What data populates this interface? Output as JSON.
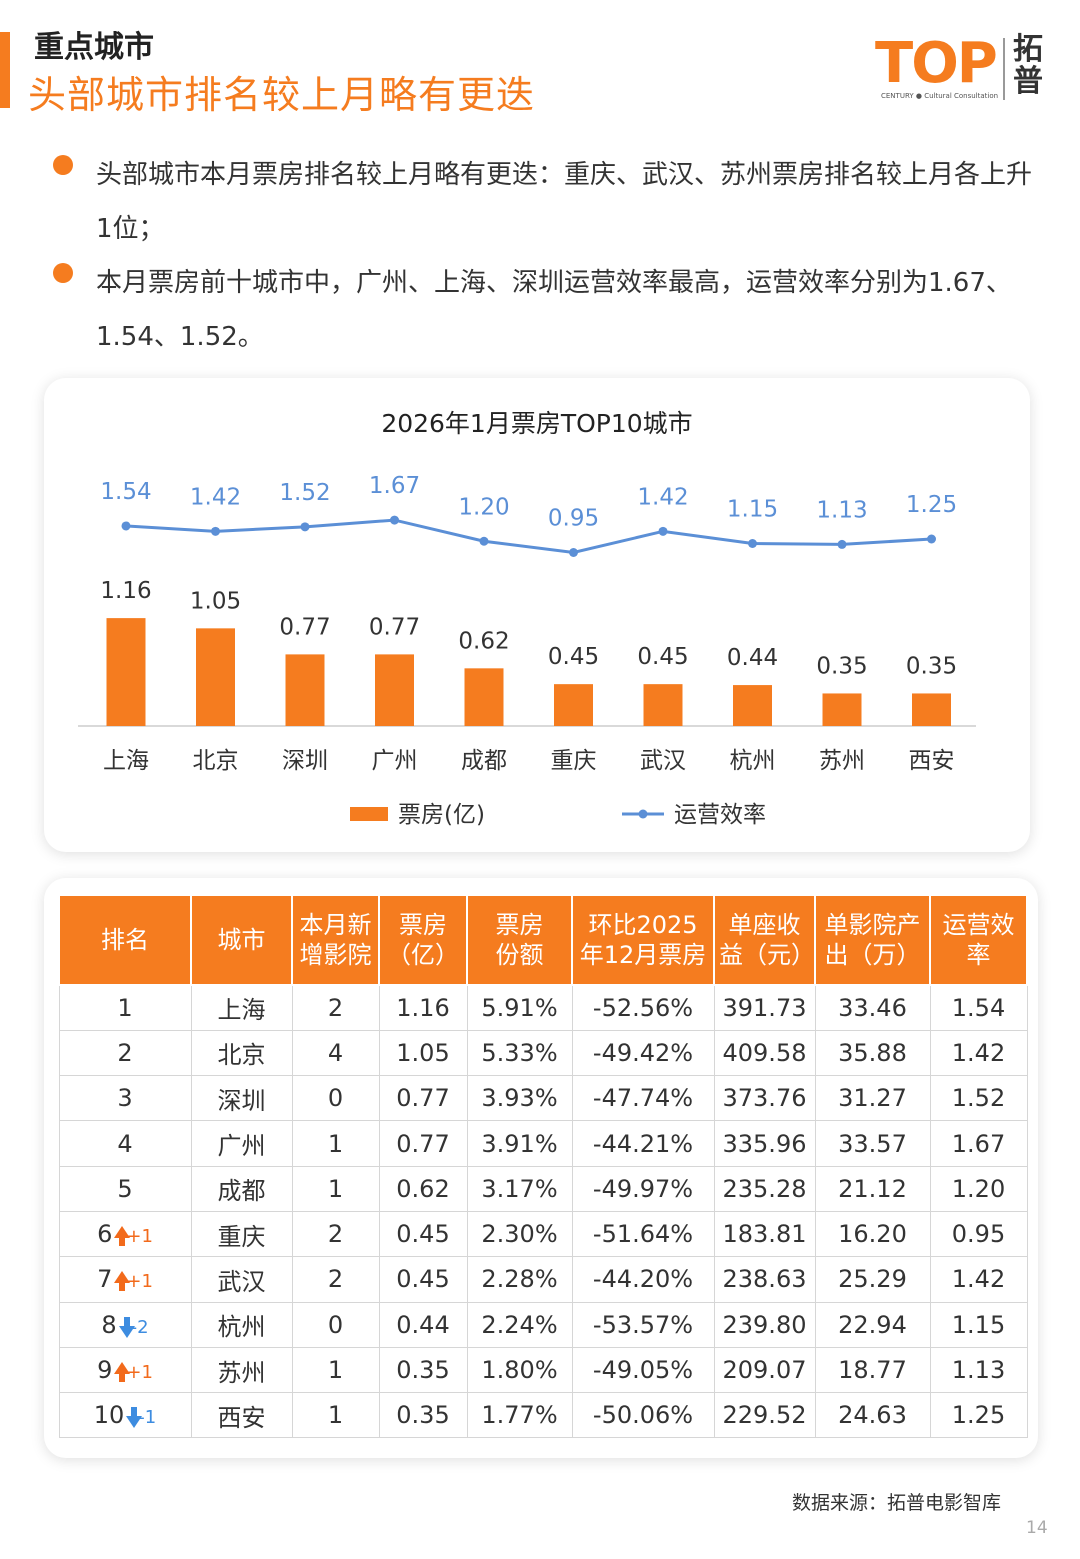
{
  "header": {
    "kicker": "重点城市",
    "headline": "头部城市排名较上月略有更迭"
  },
  "logo": {
    "brand": "TOP",
    "subtitle": "CENTURY ● Cultural Consultation",
    "cn_name_1": "拓",
    "cn_name_2": "普"
  },
  "bullets": [
    "头部城市本月票房排名较上月略有更迭：重庆、武汉、苏州票房排名较上月各上升1位；",
    "本月票房前十城市中，广州、上海、深圳运营效率最高，运营效率分别为1.67、1.54、1.52。"
  ],
  "chart_data": {
    "type": "bar",
    "title": "2026年1月票房TOP10城市",
    "categories": [
      "上海",
      "北京",
      "深圳",
      "广州",
      "成都",
      "重庆",
      "武汉",
      "杭州",
      "苏州",
      "西安"
    ],
    "series": [
      {
        "name": "票房(亿)",
        "type": "bar",
        "color": "#f57c1f",
        "values": [
          1.16,
          1.05,
          0.77,
          0.77,
          0.62,
          0.45,
          0.45,
          0.44,
          0.35,
          0.35
        ],
        "labels": [
          "1.16",
          "1.05",
          "0.77",
          "0.77",
          "0.62",
          "0.45",
          "0.45",
          "0.44",
          "0.35",
          "0.35"
        ]
      },
      {
        "name": "运营效率",
        "type": "line",
        "color": "#5b8fd6",
        "values": [
          1.54,
          1.42,
          1.52,
          1.67,
          1.2,
          0.95,
          1.42,
          1.15,
          1.13,
          1.25
        ],
        "labels": [
          "1.54",
          "1.42",
          "1.52",
          "1.67",
          "1.20",
          "0.95",
          "1.42",
          "1.15",
          "1.13",
          "1.25"
        ]
      }
    ],
    "legend_position": "bottom-center",
    "grid": false
  },
  "table": {
    "headers": [
      "排名",
      "城市",
      "本月新增影院",
      "票房（亿）",
      "票房份额",
      "环比2025年12月票房",
      "单座收益（元）",
      "单影院产出（万）",
      "运营效率"
    ],
    "headers_lines": [
      [
        "排名"
      ],
      [
        "城市"
      ],
      [
        "本月新",
        "增影院"
      ],
      [
        "票房",
        "（亿）"
      ],
      [
        "票房",
        "份额"
      ],
      [
        "环比2025",
        "年12月票房"
      ],
      [
        "单座收",
        "益（元）"
      ],
      [
        "单影院产",
        "出（万）"
      ],
      [
        "运营效",
        "率"
      ]
    ],
    "rows": [
      {
        "rank": "1",
        "change_dir": "",
        "change": "",
        "city": "上海",
        "new_cinemas": "2",
        "box_office": "1.16",
        "share": "5.91%",
        "mom": "-52.56%",
        "per_seat": "391.73",
        "per_cinema": "33.46",
        "efficiency": "1.54"
      },
      {
        "rank": "2",
        "change_dir": "",
        "change": "",
        "city": "北京",
        "new_cinemas": "4",
        "box_office": "1.05",
        "share": "5.33%",
        "mom": "-49.42%",
        "per_seat": "409.58",
        "per_cinema": "35.88",
        "efficiency": "1.42"
      },
      {
        "rank": "3",
        "change_dir": "",
        "change": "",
        "city": "深圳",
        "new_cinemas": "0",
        "box_office": "0.77",
        "share": "3.93%",
        "mom": "-47.74%",
        "per_seat": "373.76",
        "per_cinema": "31.27",
        "efficiency": "1.52"
      },
      {
        "rank": "4",
        "change_dir": "",
        "change": "",
        "city": "广州",
        "new_cinemas": "1",
        "box_office": "0.77",
        "share": "3.91%",
        "mom": "-44.21%",
        "per_seat": "335.96",
        "per_cinema": "33.57",
        "efficiency": "1.67"
      },
      {
        "rank": "5",
        "change_dir": "",
        "change": "",
        "city": "成都",
        "new_cinemas": "1",
        "box_office": "0.62",
        "share": "3.17%",
        "mom": "-49.97%",
        "per_seat": "235.28",
        "per_cinema": "21.12",
        "efficiency": "1.20"
      },
      {
        "rank": "6",
        "change_dir": "up",
        "change": "+1",
        "city": "重庆",
        "new_cinemas": "2",
        "box_office": "0.45",
        "share": "2.30%",
        "mom": "-51.64%",
        "per_seat": "183.81",
        "per_cinema": "16.20",
        "efficiency": "0.95"
      },
      {
        "rank": "7",
        "change_dir": "up",
        "change": "+1",
        "city": "武汉",
        "new_cinemas": "2",
        "box_office": "0.45",
        "share": "2.28%",
        "mom": "-44.20%",
        "per_seat": "238.63",
        "per_cinema": "25.29",
        "efficiency": "1.42"
      },
      {
        "rank": "8",
        "change_dir": "down",
        "change": "-2",
        "city": "杭州",
        "new_cinemas": "0",
        "box_office": "0.44",
        "share": "2.24%",
        "mom": "-53.57%",
        "per_seat": "239.80",
        "per_cinema": "22.94",
        "efficiency": "1.15"
      },
      {
        "rank": "9",
        "change_dir": "up",
        "change": "+1",
        "city": "苏州",
        "new_cinemas": "1",
        "box_office": "0.35",
        "share": "1.80%",
        "mom": "-49.05%",
        "per_seat": "209.07",
        "per_cinema": "18.77",
        "efficiency": "1.13"
      },
      {
        "rank": "10",
        "change_dir": "down",
        "change": "-1",
        "city": "西安",
        "new_cinemas": "1",
        "box_office": "0.35",
        "share": "1.77%",
        "mom": "-50.06%",
        "per_seat": "229.52",
        "per_cinema": "24.63",
        "efficiency": "1.25"
      }
    ]
  },
  "footer": {
    "source": "数据来源：拓普电影智库",
    "page": "14"
  },
  "colors": {
    "accent": "#f57c1f",
    "line": "#5b8fd6",
    "up": "#f26a1b",
    "down": "#3d8ce0"
  }
}
